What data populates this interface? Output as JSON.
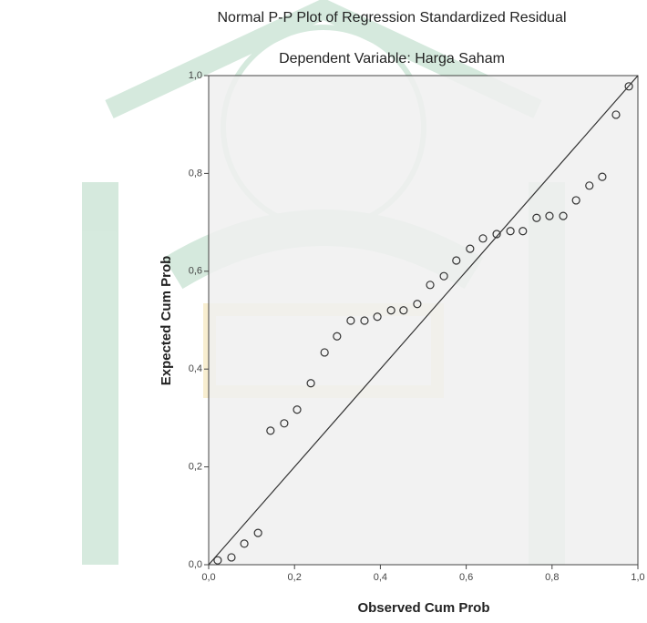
{
  "chart_data": {
    "type": "scatter",
    "title": "Normal P-P Plot of Regression Standardized Residual",
    "subtitle": "Dependent Variable: Harga Saham",
    "x_label": "Observed Cum Prob",
    "y_label": "Expected Cum Prob",
    "xlim": [
      0,
      1
    ],
    "ylim": [
      0,
      1
    ],
    "xticks": [
      {
        "value": 0,
        "label": "0,0"
      },
      {
        "value": 0.2,
        "label": "0,2"
      },
      {
        "value": 0.4,
        "label": "0,4"
      },
      {
        "value": 0.6,
        "label": "0,6"
      },
      {
        "value": 0.8,
        "label": "0,8"
      },
      {
        "value": 1,
        "label": "1,0"
      }
    ],
    "yticks": [
      {
        "value": 0,
        "label": "0,0"
      },
      {
        "value": 0.2,
        "label": "0,2"
      },
      {
        "value": 0.4,
        "label": "0,4"
      },
      {
        "value": 0.6,
        "label": "0,6"
      },
      {
        "value": 0.8,
        "label": "0,8"
      },
      {
        "value": 1,
        "label": "1,0"
      }
    ],
    "color": "#333333",
    "x": [
      0.021,
      0.053,
      0.083,
      0.115,
      0.144,
      0.176,
      0.206,
      0.238,
      0.27,
      0.299,
      0.331,
      0.363,
      0.393,
      0.425,
      0.454,
      0.486,
      0.516,
      0.548,
      0.577,
      0.609,
      0.639,
      0.671,
      0.703,
      0.732,
      0.764,
      0.794,
      0.826,
      0.856,
      0.887,
      0.917,
      0.949,
      0.979
    ],
    "values": [
      0.009,
      0.015,
      0.043,
      0.065,
      0.274,
      0.289,
      0.317,
      0.371,
      0.434,
      0.467,
      0.499,
      0.499,
      0.507,
      0.52,
      0.52,
      0.533,
      0.572,
      0.59,
      0.622,
      0.646,
      0.667,
      0.676,
      0.682,
      0.682,
      0.709,
      0.713,
      0.713,
      0.745,
      0.775,
      0.793,
      0.92,
      0.978
    ]
  }
}
